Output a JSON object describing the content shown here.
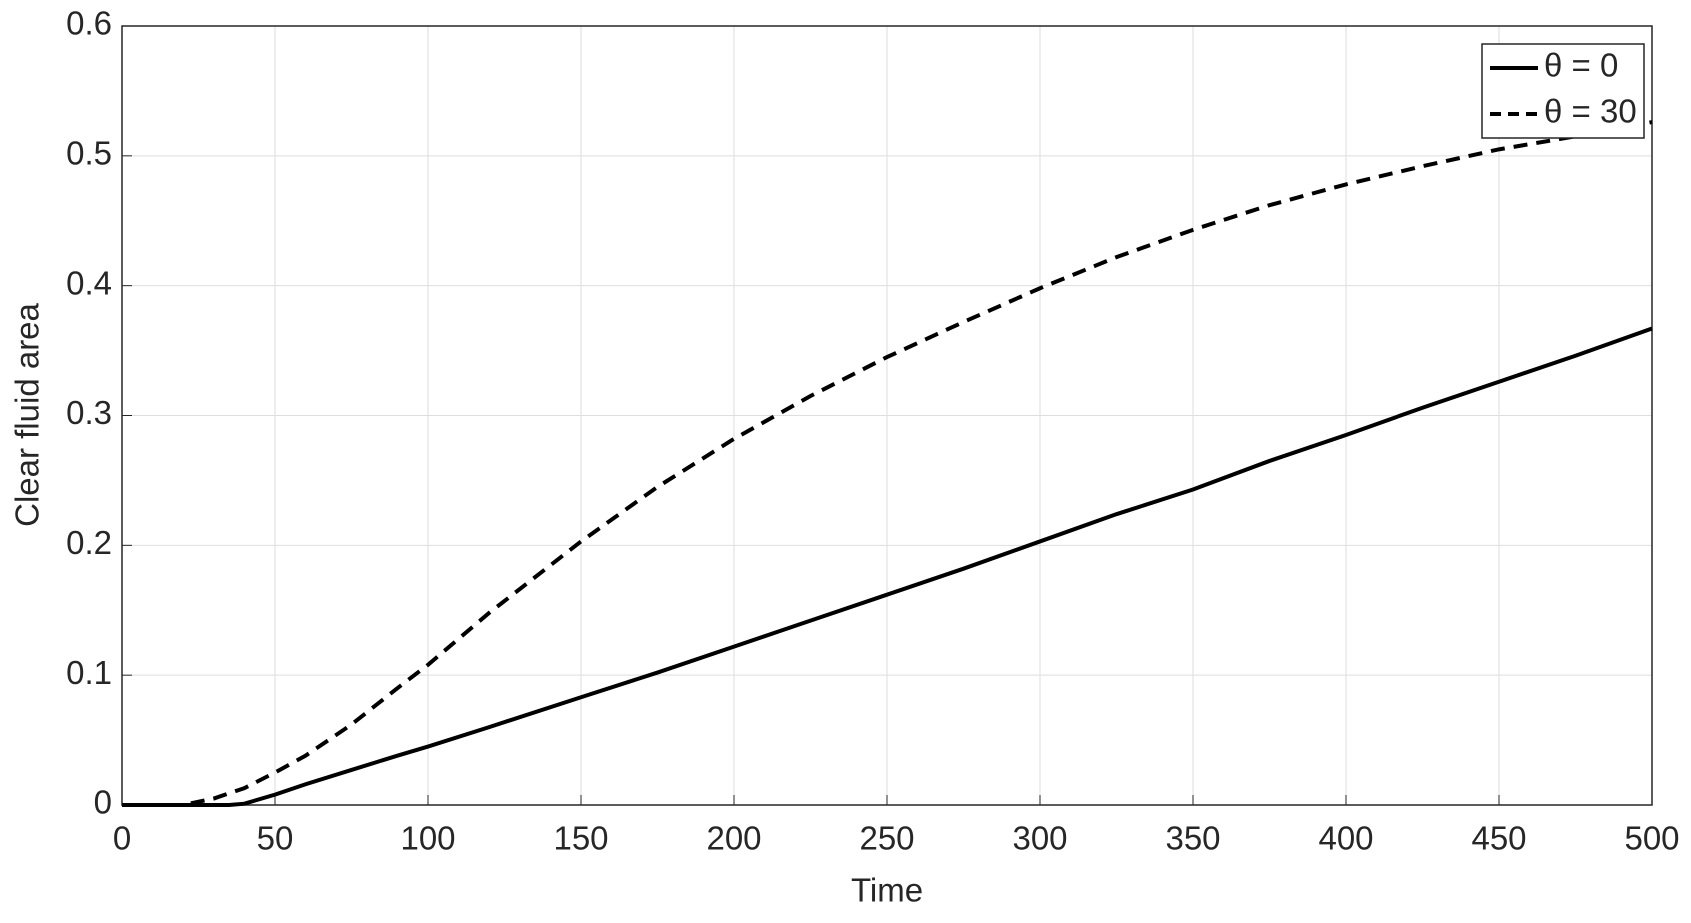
{
  "chart_data": {
    "type": "line",
    "x_label": "Time",
    "y_label": "Clear fluid area",
    "x": [
      0,
      10,
      20,
      30,
      35,
      40,
      50,
      60,
      75,
      90,
      100,
      120,
      150,
      175,
      200,
      225,
      250,
      275,
      300,
      325,
      350,
      375,
      400,
      425,
      450,
      475,
      500
    ],
    "series": [
      {
        "name": "θ = 0",
        "color": "#000000",
        "dash": "solid",
        "values": [
          0,
          0,
          0,
          0,
          0,
          0.001,
          0.008,
          0.016,
          0.027,
          0.038,
          0.045,
          0.06,
          0.083,
          0.102,
          0.122,
          0.142,
          0.162,
          0.182,
          0.203,
          0.224,
          0.243,
          0.265,
          0.285,
          0.306,
          0.326,
          0.346,
          0.367
        ]
      },
      {
        "name": "θ = 30",
        "color": "#000000",
        "dash": "dashed",
        "values": [
          0,
          0,
          0,
          0.005,
          0.009,
          0.013,
          0.025,
          0.038,
          0.062,
          0.09,
          0.108,
          0.148,
          0.203,
          0.245,
          0.282,
          0.315,
          0.345,
          0.372,
          0.398,
          0.422,
          0.443,
          0.462,
          0.478,
          0.492,
          0.505,
          0.515,
          0.526
        ]
      }
    ],
    "xlim": [
      0,
      500
    ],
    "xticks": [
      0,
      50,
      100,
      150,
      200,
      250,
      300,
      350,
      400,
      450,
      500
    ],
    "ylim": [
      0,
      0.6
    ],
    "yticks": [
      0,
      0.1,
      0.2,
      0.3,
      0.4,
      0.5,
      0.6
    ],
    "grid": true,
    "legend": "top-right"
  }
}
